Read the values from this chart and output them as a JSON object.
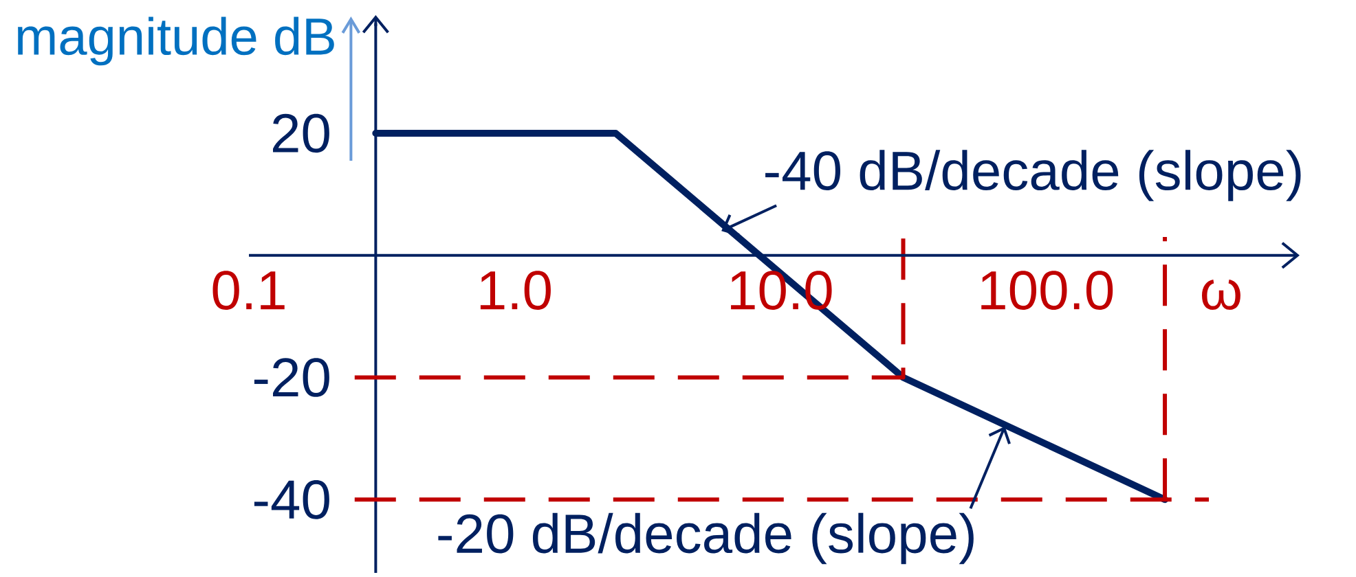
{
  "chart_data": {
    "type": "line",
    "ylabel": "magnitude dB",
    "xlabel": "ω",
    "log": "x",
    "xlim": [
      0.1,
      900
    ],
    "ylim": [
      -52,
      38
    ],
    "xticks": [
      0.1,
      {
        "value": 1,
        "label": "1.0"
      },
      {
        "value": 10,
        "label": "10.0"
      },
      {
        "value": 100,
        "label": "100.0"
      }
    ],
    "yticks": [
      20,
      -20,
      -40
    ],
    "series": [
      {
        "color": "#002060",
        "x": [
          0.3,
          2.4,
          29,
          280
        ],
        "values": [
          20,
          20,
          -20,
          -40
        ]
      },
      {
        "color": "#c00000",
        "line_style": "dashed",
        "x": [
          0.25,
          29,
          29
        ],
        "values": [
          -20,
          -20,
          3
        ]
      },
      {
        "color": "#c00000",
        "line_style": "dashed",
        "x": [
          0.25,
          410
        ],
        "values": [
          -40,
          -40
        ]
      },
      {
        "color": "#c00000",
        "line_style": "dashed",
        "x": [
          280,
          280
        ],
        "values": [
          -40,
          3
        ]
      }
    ],
    "ref_lines": [
      {
        "axis": "x",
        "value": 0.3,
        "color": "#002060"
      }
    ],
    "annotations": [
      {
        "text": "-40 dB/decade (slope)",
        "x": 6,
        "y": 4
      },
      {
        "text": "-20 dB/decade (slope)",
        "x": 70,
        "y": -28
      }
    ]
  }
}
